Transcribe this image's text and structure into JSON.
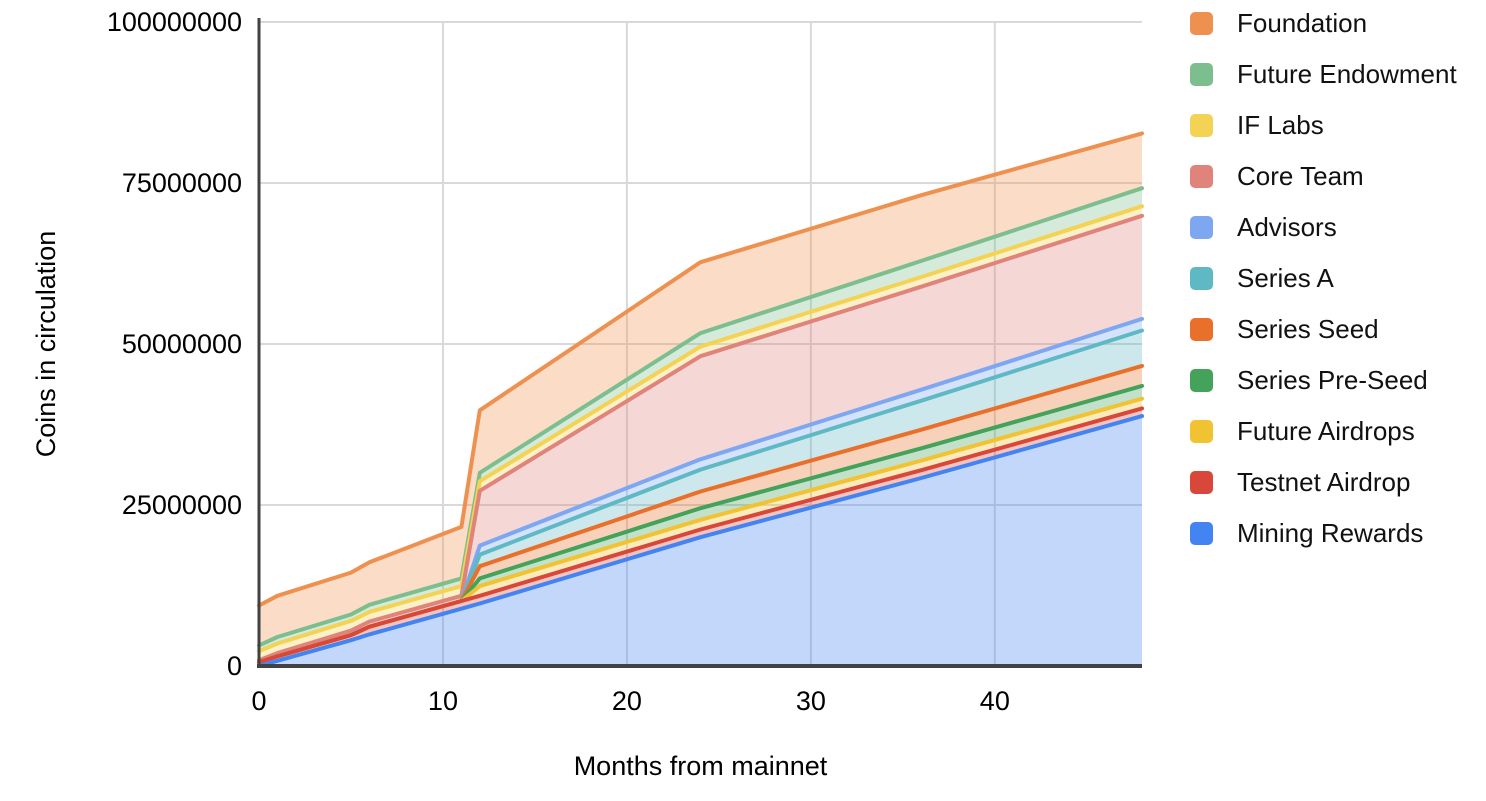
{
  "chart_data": {
    "type": "area",
    "stacked": true,
    "title": "",
    "xlabel": "Months from mainnet",
    "ylabel": "Coins in circulation",
    "xlim": [
      0,
      48
    ],
    "ylim": [
      0,
      100000000
    ],
    "x_ticks": [
      0,
      10,
      20,
      30,
      40
    ],
    "y_ticks": [
      0,
      25000000,
      50000000,
      75000000,
      100000000
    ],
    "y_tick_labels": [
      "0",
      "25000000",
      "50000000",
      "75000000",
      "100000000"
    ],
    "x_tick_labels": [
      "0",
      "10",
      "20",
      "30",
      "40"
    ],
    "grid": true,
    "legend_position": "right",
    "months": [
      0,
      1,
      5,
      6,
      11,
      12,
      24,
      36,
      48
    ],
    "series_order_note": "bottom of stack first; legend shows reverse order",
    "series": [
      {
        "name": "Mining Rewards",
        "color": "#4483F2",
        "values": [
          0,
          800000,
          4000000,
          4900000,
          8900000,
          9700000,
          20000000,
          29200000,
          38800000
        ]
      },
      {
        "name": "Testnet Airdrop",
        "color": "#D9473B",
        "values": [
          600000,
          700000,
          800000,
          1200000,
          1200000,
          1200000,
          1200000,
          1200000,
          1200000
        ]
      },
      {
        "name": "Future Airdrops",
        "color": "#F1C232",
        "values": [
          0,
          0,
          0,
          0,
          0,
          1500000,
          1500000,
          1500000,
          1500000
        ]
      },
      {
        "name": "Series Pre-Seed",
        "color": "#44A25A",
        "values": [
          0,
          0,
          0,
          0,
          0,
          1200000,
          1800000,
          1900000,
          2000000
        ]
      },
      {
        "name": "Series Seed",
        "color": "#E8702A",
        "values": [
          0,
          0,
          0,
          0,
          0,
          1900000,
          2600000,
          2900000,
          3100000
        ]
      },
      {
        "name": "Series A",
        "color": "#5FB9C4",
        "values": [
          0,
          0,
          0,
          0,
          0,
          1800000,
          3400000,
          4500000,
          5500000
        ]
      },
      {
        "name": "Advisors",
        "color": "#7DA7F0",
        "values": [
          0,
          0,
          0,
          0,
          0,
          1400000,
          1600000,
          1700000,
          1800000
        ]
      },
      {
        "name": "Core Team",
        "color": "#E0837B",
        "values": [
          300000,
          500000,
          700000,
          800000,
          800000,
          8500000,
          16000000,
          16000000,
          16000000
        ]
      },
      {
        "name": "IF Labs",
        "color": "#F3D254",
        "values": [
          1400000,
          1500000,
          1500000,
          1500000,
          1500000,
          1500000,
          1500000,
          1500000,
          1500000
        ]
      },
      {
        "name": "Future Endowment",
        "color": "#7CBE8E",
        "values": [
          900000,
          1000000,
          1000000,
          1100000,
          1200000,
          1300000,
          2100000,
          2500000,
          2800000
        ]
      },
      {
        "name": "Foundation",
        "color": "#EE9150",
        "values": [
          6200000,
          6400000,
          6500000,
          6600000,
          8000000,
          9700000,
          11000000,
          10200000,
          8500000
        ]
      }
    ],
    "style": {
      "fill_opacity": 0.32,
      "line_width": 4,
      "gridline_color": "#D9D9D9",
      "axis_color": "#424242",
      "background": "#FFFFFF"
    }
  }
}
